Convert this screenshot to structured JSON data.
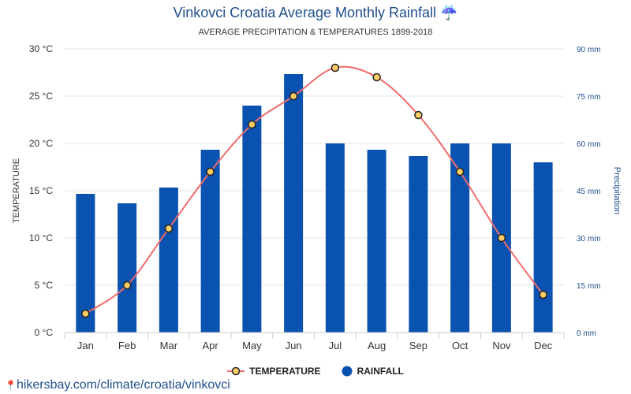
{
  "header": {
    "title": "Vinkovci Croatia Average Monthly Rainfall",
    "title_icon": "umbrella-rain-icon",
    "subtitle": "AVERAGE PRECIPITATION & TEMPERATURES 1899-2018"
  },
  "legend": {
    "temperature_label": "TEMPERATURE",
    "rainfall_label": "RAINFALL"
  },
  "footer": {
    "source": "hikersbay.com/climate/croatia/vinkovci",
    "source_icon": "map-pin-icon"
  },
  "colors": {
    "bar": "#0a52b0",
    "line": "#f06b6b",
    "marker_fill": "#ffcc66",
    "marker_stroke": "#222222",
    "title": "#1f4e8c",
    "right_axis": "#1f4e8c",
    "grid": "#e6e6e6"
  },
  "chart_data": {
    "type": "bar",
    "categories": [
      "Jan",
      "Feb",
      "Mar",
      "Apr",
      "May",
      "Jun",
      "Jul",
      "Aug",
      "Sep",
      "Oct",
      "Nov",
      "Dec"
    ],
    "series": [
      {
        "name": "RAINFALL",
        "type": "bar",
        "axis": "right",
        "values": [
          44,
          41,
          46,
          58,
          72,
          82,
          60,
          58,
          56,
          60,
          60,
          54
        ]
      },
      {
        "name": "TEMPERATURE",
        "type": "line",
        "axis": "left",
        "values": [
          2,
          5,
          11,
          17,
          22,
          25,
          28,
          27,
          23,
          17,
          10,
          4
        ]
      }
    ],
    "ylabel": "TEMPERATURE",
    "y2label": "Precipitation",
    "ylim": [
      0,
      30
    ],
    "y2lim": [
      0,
      90
    ],
    "yticks": [
      "0 °C",
      "5 °C",
      "10 °C",
      "15 °C",
      "20 °C",
      "25 °C",
      "30 °C"
    ],
    "y2ticks": [
      "0 mm",
      "15 mm",
      "30 mm",
      "45 mm",
      "60 mm",
      "75 mm",
      "90 mm"
    ],
    "grid": true,
    "legend_position": "bottom-center"
  }
}
